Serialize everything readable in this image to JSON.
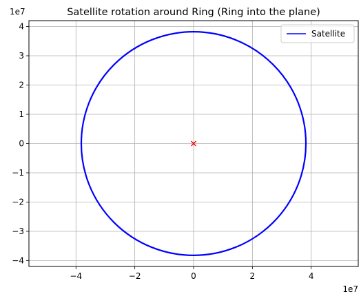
{
  "chart_data": {
    "type": "scatter",
    "title": "Satellite rotation around Ring (Ring into the plane)",
    "xlabel": "",
    "ylabel": "",
    "x_offset_label": "1e7",
    "y_offset_label": "1e7",
    "xlim": [
      -5.6,
      5.6
    ],
    "ylim": [
      -4.2,
      4.2
    ],
    "xticks": [
      -4,
      -2,
      0,
      2,
      4
    ],
    "xtick_labels": [
      "−4",
      "−2",
      "0",
      "2",
      "4"
    ],
    "yticks": [
      -4,
      -3,
      -2,
      -1,
      0,
      1,
      2,
      3,
      4
    ],
    "ytick_labels": [
      "−4",
      "−3",
      "−2",
      "−1",
      "0",
      "1",
      "2",
      "3",
      "4"
    ],
    "grid": true,
    "legend_position": "top-right",
    "series": [
      {
        "name": "Satellite",
        "kind": "line",
        "shape": "circle",
        "center": [
          0,
          0
        ],
        "radius": 3.82,
        "color": "#0000ff"
      },
      {
        "kind": "marker",
        "marker": "x",
        "points": [
          [
            0,
            0
          ]
        ],
        "color": "#ff0000"
      }
    ]
  }
}
